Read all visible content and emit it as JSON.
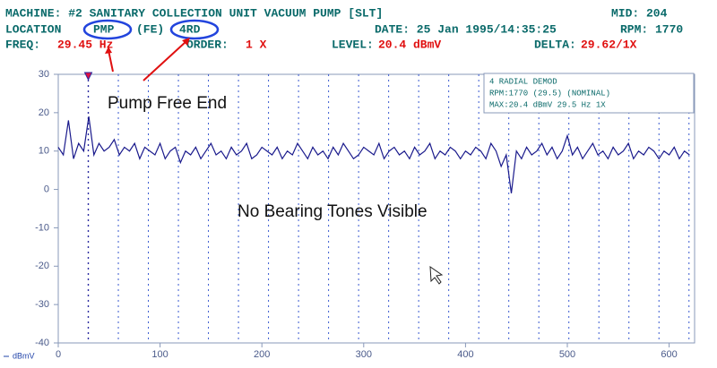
{
  "chart_data": {
    "type": "line",
    "machine": "MACHINE: #2 SANITARY COLLECTION UNIT VACUUM PUMP [SLT]",
    "mid": "MID: 204",
    "location_label": "LOCATION",
    "location_point": "PMP",
    "location_end": "(FE)",
    "location_dir": "4RD",
    "date": "DATE: 25 Jan 1995/14:35:25",
    "rpm": "RPM: 1770",
    "freq_label": "FREQ:",
    "freq_value": "29.45 Hz",
    "order_label": "ORDER:",
    "order_value": "1 X",
    "level_label": "LEVEL:",
    "level_value": "20.4 dBmV",
    "delta_label": "DELTA:",
    "delta_value": "29.62/1X",
    "legend_title": "4 RADIAL DEMOD",
    "legend_line1": "RPM:1770 (29.5) (NOMINAL)",
    "legend_line2": "MAX:20.4 dBmV 29.5 Hz 1X",
    "annotation1": "Pump Free End",
    "annotation2": "No Bearing Tones Visible",
    "y_label": "dBmV",
    "xlim": [
      0,
      625
    ],
    "ylim": [
      -40,
      30
    ],
    "xticks": [
      0,
      100,
      200,
      300,
      400,
      500,
      600
    ],
    "yticks": [
      30,
      20,
      10,
      0,
      -10,
      -20,
      -30,
      -40
    ],
    "harmonics": [
      29.5,
      59,
      88.5,
      118,
      147.5,
      177,
      206.5,
      236,
      265.5,
      295,
      324.5,
      354,
      383.5,
      413,
      442.5,
      472,
      501.5,
      531,
      560.5,
      590,
      619.5
    ],
    "x": [
      0,
      5,
      10,
      15,
      20,
      25,
      30,
      35,
      40,
      45,
      50,
      55,
      60,
      65,
      70,
      75,
      80,
      85,
      90,
      95,
      100,
      105,
      110,
      115,
      120,
      125,
      130,
      135,
      140,
      145,
      150,
      155,
      160,
      165,
      170,
      175,
      180,
      185,
      190,
      195,
      200,
      205,
      210,
      215,
      220,
      225,
      230,
      235,
      240,
      245,
      250,
      255,
      260,
      265,
      270,
      275,
      280,
      285,
      290,
      295,
      300,
      305,
      310,
      315,
      320,
      325,
      330,
      335,
      340,
      345,
      350,
      355,
      360,
      365,
      370,
      375,
      380,
      385,
      390,
      395,
      400,
      405,
      410,
      415,
      420,
      425,
      430,
      435,
      440,
      445,
      450,
      455,
      460,
      465,
      470,
      475,
      480,
      485,
      490,
      495,
      500,
      505,
      510,
      515,
      520,
      525,
      530,
      535,
      540,
      545,
      550,
      555,
      560,
      565,
      570,
      575,
      580,
      585,
      590,
      595,
      600,
      605,
      610,
      615,
      620
    ],
    "series": [
      {
        "color": "#1a1a8c",
        "values": [
          11,
          9,
          18,
          8,
          12,
          10,
          19,
          9,
          12,
          10,
          11,
          13,
          9,
          11,
          10,
          12,
          8,
          11,
          10,
          9,
          12,
          8,
          10,
          11,
          7,
          10,
          9,
          11,
          8,
          10,
          12,
          9,
          10,
          8,
          11,
          9,
          10,
          12,
          8,
          9,
          11,
          10,
          9,
          11,
          8,
          10,
          9,
          12,
          10,
          8,
          11,
          9,
          10,
          8,
          11,
          9,
          12,
          10,
          8,
          9,
          11,
          10,
          9,
          12,
          8,
          10,
          11,
          9,
          10,
          8,
          11,
          9,
          10,
          12,
          8,
          10,
          9,
          11,
          10,
          8,
          10,
          9,
          11,
          10,
          8,
          12,
          10,
          6,
          9,
          -1,
          10,
          8,
          11,
          9,
          10,
          12,
          9,
          11,
          8,
          10,
          14,
          9,
          11,
          8,
          10,
          12,
          9,
          10,
          8,
          11,
          9,
          10,
          12,
          8,
          10,
          9,
          11,
          10,
          8,
          10,
          9,
          11,
          8,
          10,
          9
        ]
      }
    ]
  }
}
